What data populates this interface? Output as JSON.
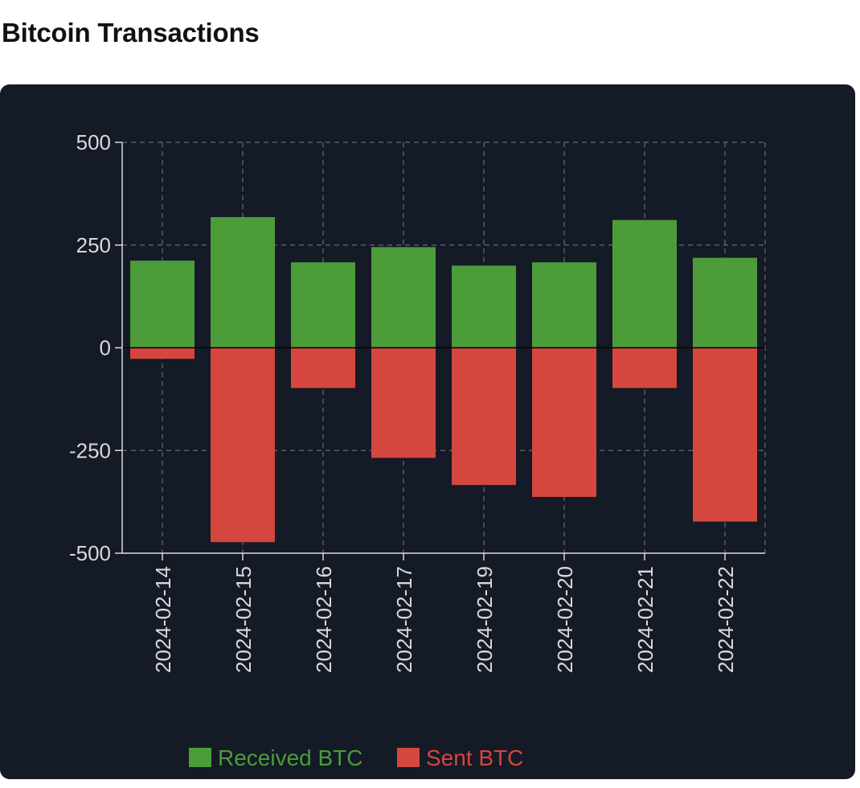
{
  "page": {
    "title": "Bitcoin Transactions"
  },
  "chart_data": {
    "type": "bar",
    "stacked": true,
    "categories": [
      "2024-02-14",
      "2024-02-15",
      "2024-02-16",
      "2024-02-17",
      "2024-02-19",
      "2024-02-20",
      "2024-02-21",
      "2024-02-22"
    ],
    "series": [
      {
        "name": "Received BTC",
        "color": "#4c9c3a",
        "values": [
          212,
          318,
          208,
          245,
          200,
          208,
          311,
          219
        ]
      },
      {
        "name": "Sent BTC",
        "color": "#d5463f",
        "values": [
          -27,
          -473,
          -98,
          -268,
          -334,
          -363,
          -98,
          -423
        ]
      }
    ],
    "ylim": [
      -500,
      500
    ],
    "yticks": [
      500,
      250,
      0,
      -250,
      -500
    ],
    "grid": true,
    "legend_position": "bottom",
    "colors": {
      "background": "#141a26",
      "grid": "#6b6b6b",
      "axis": "#d9d9d9",
      "zero_line": "#000000",
      "tick_text": "#d9d9d9"
    }
  }
}
